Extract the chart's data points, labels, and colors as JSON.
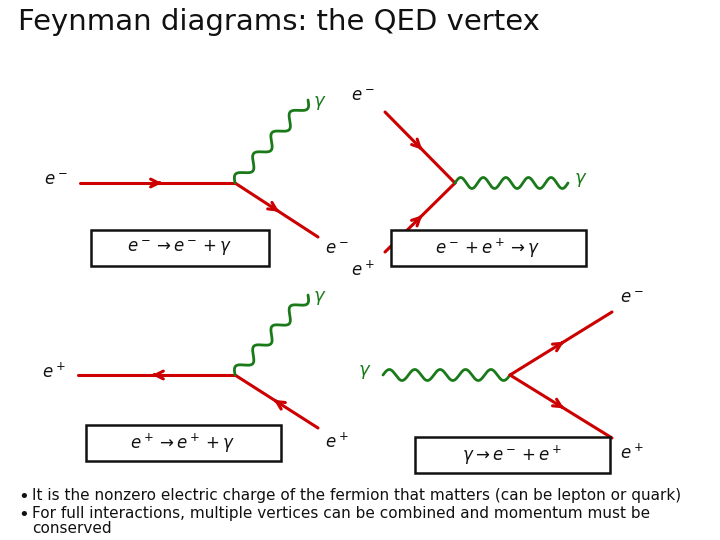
{
  "title": "Feynman diagrams: the QED vertex",
  "title_fontsize": 21,
  "red": "#cc0000",
  "green": "#1a7a1a",
  "black": "#111111",
  "bullet1": "It is the nonzero electric charge of the fermion that matters (can be lepton or quark)",
  "bullet2": "For full interactions, multiple vertices can be combined and momentum must be",
  "bullet2b": "conserved",
  "eq1": "$e^- \\rightarrow e^- + \\gamma$",
  "eq2": "$e^- + e^+ \\rightarrow \\gamma$",
  "eq3": "$e^+ \\rightarrow e^+ + \\gamma$",
  "eq4": "$\\gamma \\rightarrow e^- + e^+$"
}
